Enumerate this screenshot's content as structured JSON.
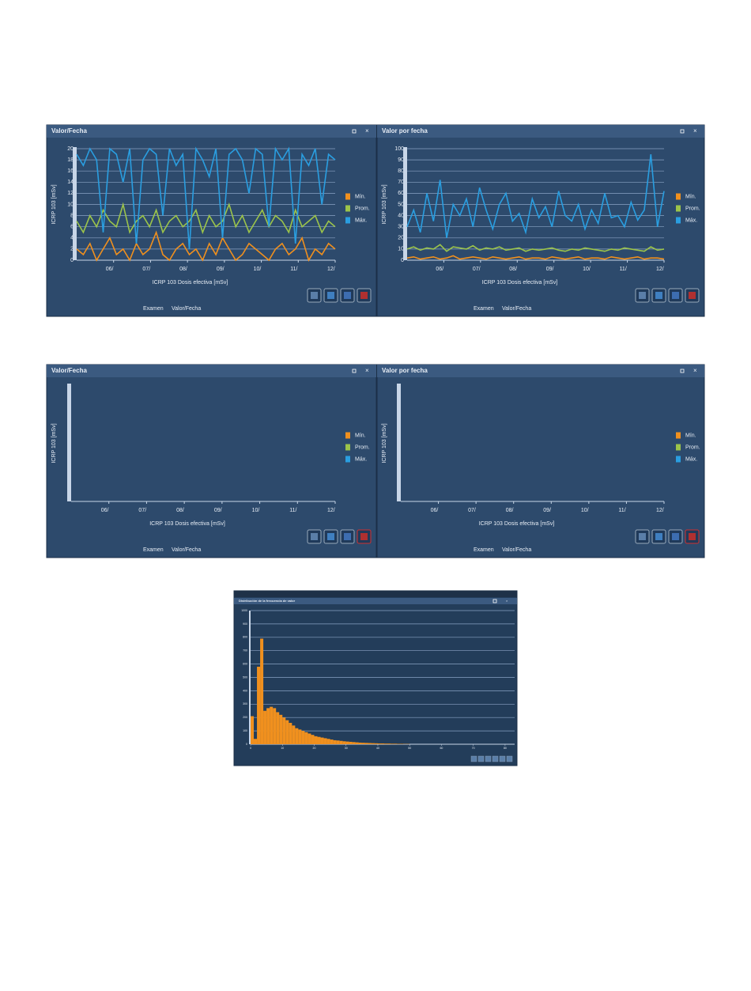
{
  "chart_data": [
    {
      "type": "line",
      "title": "Valor/Fecha",
      "ylabel": "ICRP 103   [mSv]",
      "xlabel": "ICRP 103 Dosis efectiva [mSv]",
      "xtick_labels": [
        "06/",
        "07/",
        "08/",
        "09/",
        "10/",
        "11/",
        "12/"
      ],
      "ylim": [
        0,
        20
      ],
      "yticks": [
        0,
        2,
        4,
        6,
        8,
        10,
        12,
        14,
        16,
        18,
        20
      ],
      "grid": true,
      "tabs": [
        "Examen",
        "Valor/Fecha"
      ],
      "series": [
        {
          "name": "Mín.",
          "color": "#f0901e",
          "values": [
            2,
            1,
            3,
            0,
            2,
            4,
            1,
            2,
            0,
            3,
            1,
            2,
            5,
            1,
            0,
            2,
            3,
            1,
            2,
            0,
            3,
            1,
            4,
            2,
            0,
            1,
            3,
            2,
            1,
            0,
            2,
            3,
            1,
            2,
            4,
            0,
            2,
            1,
            3,
            2
          ]
        },
        {
          "name": "Prom.",
          "color": "#9cc44a",
          "values": [
            7,
            5,
            8,
            6,
            9,
            7,
            6,
            10,
            5,
            7,
            8,
            6,
            9,
            5,
            7,
            8,
            6,
            7,
            9,
            5,
            8,
            6,
            7,
            10,
            6,
            8,
            5,
            7,
            9,
            6,
            8,
            7,
            5,
            9,
            6,
            7,
            8,
            5,
            7,
            6
          ]
        },
        {
          "name": "Máx.",
          "color": "#2a9ee0",
          "values": [
            19,
            17,
            20,
            18,
            5,
            20,
            19,
            14,
            20,
            3,
            18,
            20,
            19,
            8,
            20,
            17,
            19,
            2,
            20,
            18,
            15,
            20,
            4,
            19,
            20,
            18,
            12,
            20,
            19,
            6,
            20,
            18,
            20,
            3,
            19,
            17,
            20,
            10,
            19,
            18
          ]
        }
      ]
    },
    {
      "type": "line",
      "title": "Valor por fecha",
      "ylabel": "ICRP 103   [mSv]",
      "xlabel": "ICRP 103 Dosis efectiva [mSv]",
      "xtick_labels": [
        "06/",
        "07/",
        "08/",
        "09/",
        "10/",
        "11/",
        "12/"
      ],
      "ylim": [
        0,
        100
      ],
      "yticks": [
        0,
        10,
        20,
        30,
        40,
        50,
        60,
        70,
        80,
        90,
        100
      ],
      "grid": true,
      "tabs": [
        "Examen",
        "Valor/Fecha"
      ],
      "series": [
        {
          "name": "Mín.",
          "color": "#f0901e",
          "values": [
            2,
            3,
            1,
            2,
            3,
            1,
            2,
            4,
            1,
            2,
            3,
            2,
            1,
            3,
            2,
            1,
            2,
            3,
            1,
            2,
            2,
            1,
            3,
            2,
            1,
            2,
            3,
            1,
            2,
            2,
            1,
            3,
            2,
            1,
            2,
            3,
            1,
            2,
            2,
            1
          ]
        },
        {
          "name": "Prom.",
          "color": "#9cc44a",
          "values": [
            10,
            12,
            9,
            11,
            10,
            14,
            8,
            12,
            11,
            10,
            13,
            9,
            11,
            10,
            12,
            9,
            10,
            11,
            8,
            10,
            9,
            10,
            11,
            9,
            8,
            10,
            9,
            11,
            10,
            9,
            8,
            10,
            9,
            11,
            10,
            9,
            8,
            12,
            9,
            10
          ]
        },
        {
          "name": "Máx.",
          "color": "#2a9ee0",
          "values": [
            30,
            45,
            25,
            60,
            35,
            72,
            20,
            50,
            40,
            55,
            30,
            65,
            45,
            28,
            50,
            60,
            35,
            42,
            25,
            55,
            38,
            48,
            30,
            62,
            40,
            35,
            50,
            28,
            45,
            33,
            60,
            38,
            40,
            30,
            52,
            36,
            45,
            95,
            30,
            62
          ]
        }
      ]
    },
    {
      "type": "line",
      "title": "Valor/Fecha",
      "ylabel": "ICRP 103   [mSv]",
      "xlabel": "ICRP 103 Dosis efectiva [mSv]",
      "xtick_labels": [
        "06/",
        "07/",
        "08/",
        "09/",
        "10/",
        "11/",
        "12/"
      ],
      "tabs": [
        "Examen",
        "Valor/Fecha"
      ],
      "series": [
        {
          "name": "Mín.",
          "color": "#f0901e",
          "values": []
        },
        {
          "name": "Prom.",
          "color": "#9cc44a",
          "values": []
        },
        {
          "name": "Máx.",
          "color": "#2a9ee0",
          "values": []
        }
      ]
    },
    {
      "type": "line",
      "title": "Valor por fecha",
      "ylabel": "ICRP 103   [mSv]",
      "xlabel": "ICRP 103 Dosis efectiva [mSv]",
      "xtick_labels": [
        "06/",
        "07/",
        "08/",
        "09/",
        "10/",
        "11/",
        "12/"
      ],
      "tabs": [
        "Examen",
        "Valor/Fecha"
      ],
      "series": [
        {
          "name": "Mín.",
          "color": "#f0901e",
          "values": []
        },
        {
          "name": "Prom.",
          "color": "#9cc44a",
          "values": []
        },
        {
          "name": "Máx.",
          "color": "#2a9ee0",
          "values": []
        }
      ]
    },
    {
      "type": "histogram",
      "title": "Distribución de la frecuencia de valor",
      "color": "#f0901e",
      "bins": [
        0,
        1,
        2,
        3,
        4,
        5,
        6,
        7,
        8,
        9,
        10,
        11,
        12,
        13,
        14,
        15,
        16,
        17,
        18,
        19,
        20,
        21,
        22,
        23,
        24,
        25,
        26,
        27,
        28,
        29,
        30,
        31,
        32,
        33,
        34,
        35,
        36,
        37,
        38,
        39,
        40,
        41,
        42,
        43,
        44,
        45,
        46,
        47,
        48,
        49,
        50
      ],
      "counts": [
        210,
        40,
        580,
        790,
        250,
        270,
        280,
        270,
        240,
        220,
        200,
        180,
        160,
        140,
        120,
        110,
        100,
        90,
        80,
        70,
        60,
        55,
        50,
        45,
        40,
        35,
        30,
        28,
        25,
        22,
        20,
        18,
        16,
        14,
        12,
        11,
        10,
        9,
        8,
        7,
        6,
        6,
        5,
        5,
        4,
        4,
        3,
        3,
        2,
        2
      ],
      "xlim": [
        0,
        83
      ],
      "xticks": [
        0,
        10,
        20,
        30,
        40,
        50,
        60,
        70,
        80
      ],
      "ylim": [
        0,
        1000
      ],
      "yticks": [
        0,
        100,
        200,
        300,
        400,
        500,
        600,
        700,
        800,
        900,
        1000
      ],
      "grid": true
    }
  ]
}
